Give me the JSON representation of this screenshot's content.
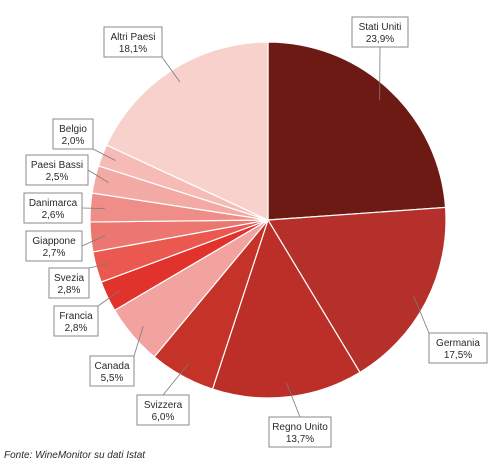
{
  "chart_data": {
    "type": "pie",
    "categories": [
      "Stati Uniti",
      "Germania",
      "Regno Unito",
      "Svizzera",
      "Canada",
      "Francia",
      "Svezia",
      "Giappone",
      "Danimarca",
      "Paesi Bassi",
      "Belgio",
      "Altri Paesi"
    ],
    "values": [
      23.9,
      17.5,
      13.7,
      6.0,
      5.5,
      2.8,
      2.8,
      2.7,
      2.6,
      2.5,
      2.0,
      18.1
    ],
    "value_labels": [
      "23,9%",
      "17,5%",
      "13,7%",
      "6,0%",
      "5,5%",
      "2,8%",
      "2,8%",
      "2,7%",
      "2,6%",
      "2,5%",
      "2,0%",
      "18,1%"
    ],
    "colors": [
      "#6e1a14",
      "#b5302a",
      "#bc2e28",
      "#c43228",
      "#f2a3a0",
      "#e2322c",
      "#eb5850",
      "#ec7670",
      "#ef8e89",
      "#f3aaa5",
      "#f6bbb7",
      "#f8d0cc"
    ],
    "start_angle_deg": 0,
    "direction": "clockwise"
  },
  "source": "Fonte: WineMonitor su dati Istat"
}
